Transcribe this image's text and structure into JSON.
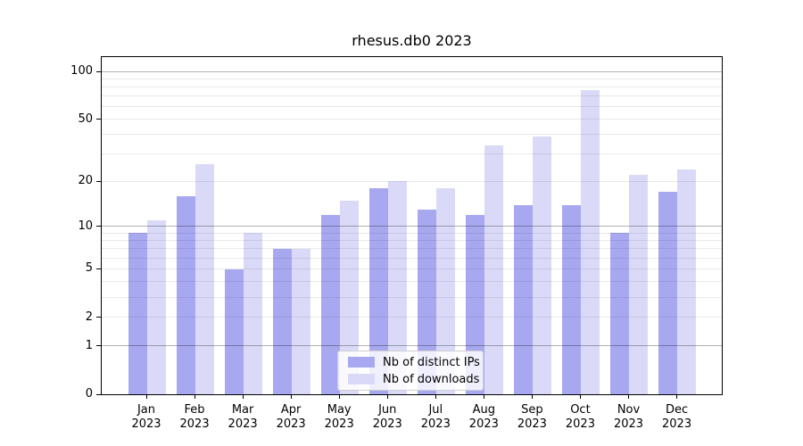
{
  "title": "rhesus.db0 2023",
  "chart_data": {
    "type": "bar",
    "title": "rhesus.db0 2023",
    "categories": [
      "Jan",
      "Feb",
      "Mar",
      "Apr",
      "May",
      "Jun",
      "Jul",
      "Aug",
      "Sep",
      "Oct",
      "Nov",
      "Dec"
    ],
    "year_label": "2023",
    "series": [
      {
        "name": "Nb of distinct IPs",
        "color": "#a8a8f0",
        "values": [
          9,
          16,
          5,
          7,
          12,
          18,
          13,
          12,
          14,
          14,
          9,
          17
        ]
      },
      {
        "name": "Nb of downloads",
        "color": "#dadaf8",
        "values": [
          11,
          26,
          9,
          7,
          15,
          20,
          18,
          34,
          39,
          76,
          22,
          24
        ]
      }
    ],
    "yscale": "log1p",
    "yticks": [
      0,
      1,
      2,
      5,
      10,
      20,
      50,
      100
    ],
    "ylim": [
      0,
      122
    ],
    "grid": {
      "major": [
        1,
        10,
        100
      ],
      "minor": [
        2,
        3,
        4,
        5,
        6,
        7,
        8,
        9,
        20,
        30,
        40,
        50,
        60,
        70,
        80,
        90
      ],
      "major_color": "rgba(0,0,0,0.30)",
      "minor_color": "rgba(0,0,0,0.085)"
    },
    "legend_position": "lower center",
    "xlabel": "",
    "ylabel": ""
  },
  "colors": {
    "axis": "#000000",
    "background": "#ffffff"
  }
}
